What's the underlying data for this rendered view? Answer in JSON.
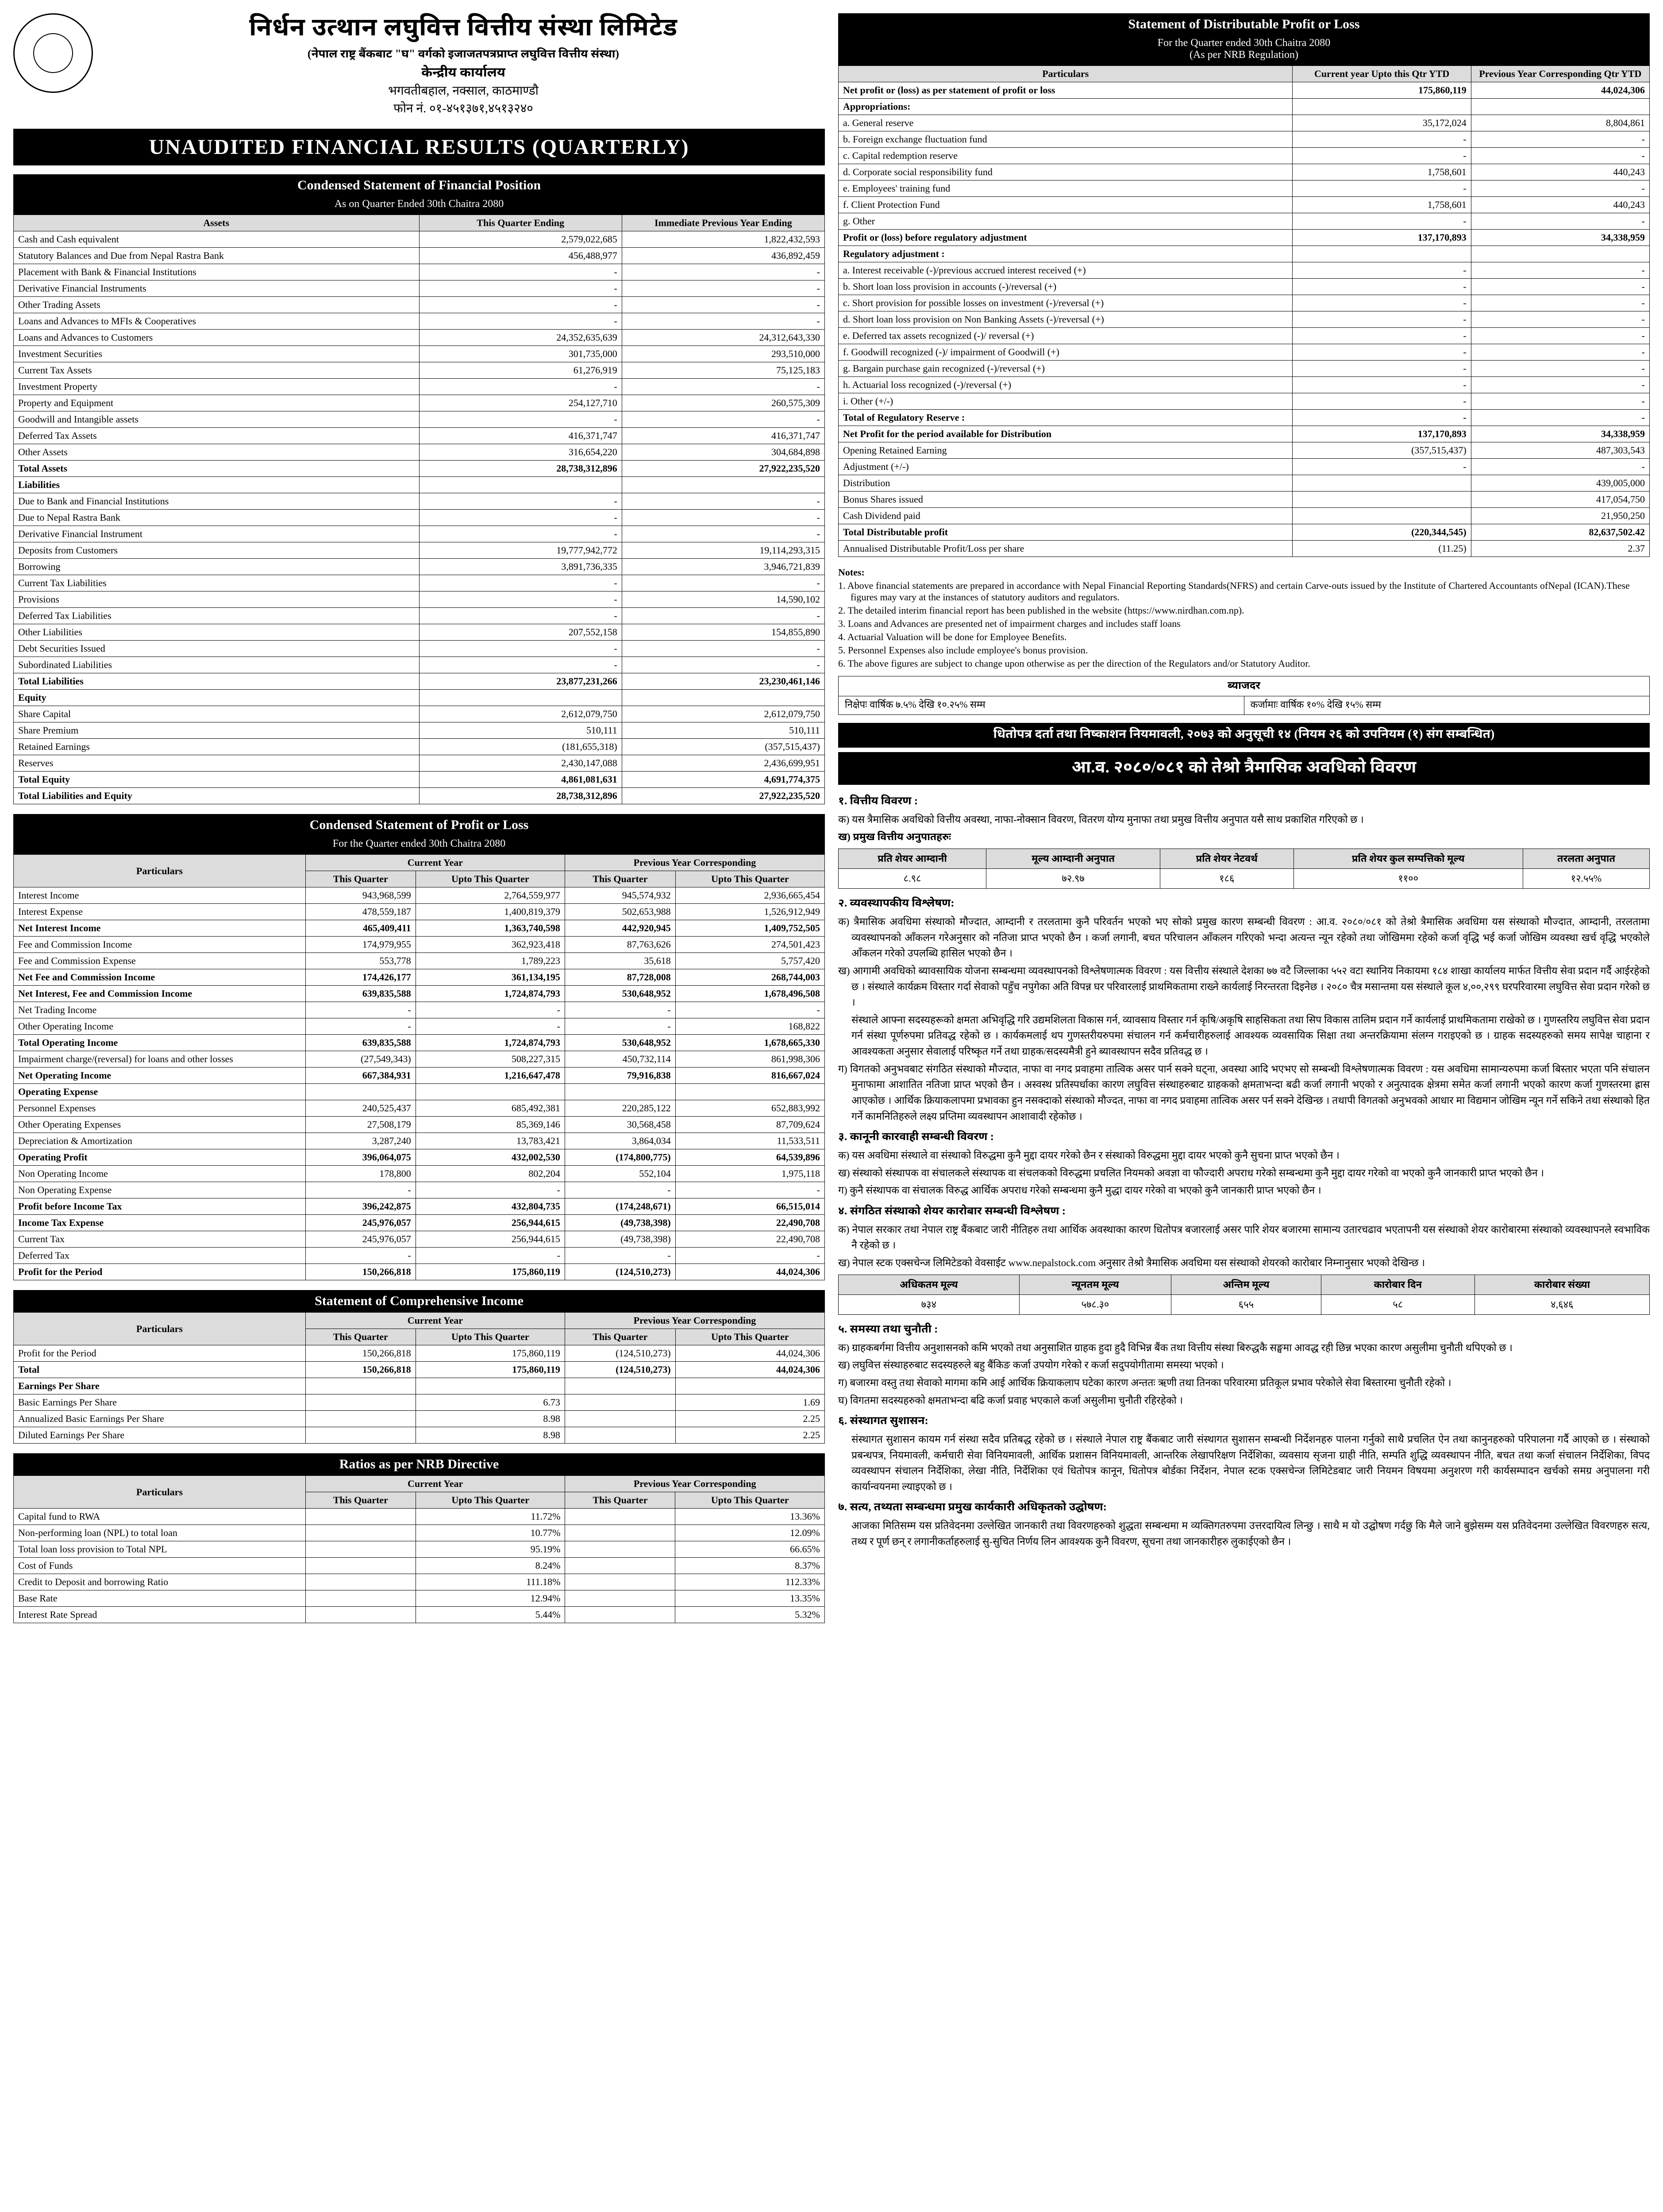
{
  "header": {
    "bank_name": "निर्धन उत्थान लघुवित्त वित्तीय संस्था लिमिटेड",
    "bank_sub": "(नेपाल राष्ट्र बैंकबाट \"घ\" वर्गको इजाजतपत्रप्राप्त लघुवित्त वित्तीय संस्था)",
    "office": "केन्द्रीय कार्यालय",
    "address": "भगवतीबहाल, नक्साल, काठमाण्डौ",
    "phone": "फोन नं. ०१-४५१३७१,४५१३२४०"
  },
  "main_title": "UNAUDITED FINANCIAL RESULTS (QUARTERLY)",
  "sofp": {
    "title": "Condensed Statement of Financial Position",
    "subtitle": "As on Quarter Ended 30th Chaitra 2080",
    "headers": [
      "Assets",
      "This Quarter Ending",
      "Immediate Previous Year Ending"
    ],
    "rows": [
      [
        "Cash and Cash equivalent",
        "2,579,022,685",
        "1,822,432,593"
      ],
      [
        "Statutory Balances and Due from Nepal Rastra Bank",
        "456,488,977",
        "436,892,459"
      ],
      [
        "Placement with Bank & Financial Institutions",
        "-",
        "-"
      ],
      [
        "Derivative Financial Instruments",
        "-",
        "-"
      ],
      [
        "Other Trading Assets",
        "-",
        "-"
      ],
      [
        "Loans and Advances to MFIs & Cooperatives",
        "-",
        "-"
      ],
      [
        "Loans and Advances to Customers",
        "24,352,635,639",
        "24,312,643,330"
      ],
      [
        "Investment Securities",
        "301,735,000",
        "293,510,000"
      ],
      [
        "Current Tax Assets",
        "61,276,919",
        "75,125,183"
      ],
      [
        "Investment Property",
        "-",
        "-"
      ],
      [
        "Property and Equipment",
        "254,127,710",
        "260,575,309"
      ],
      [
        "Goodwill and Intangible assets",
        "-",
        "-"
      ],
      [
        "Deferred Tax Assets",
        "416,371,747",
        "416,371,747"
      ],
      [
        "Other Assets",
        "316,654,220",
        "304,684,898"
      ]
    ],
    "total_assets": [
      "Total Assets",
      "28,738,312,896",
      "27,922,235,520"
    ],
    "liab_header": "Liabilities",
    "liab_rows": [
      [
        "Due to Bank and Financial Institutions",
        "-",
        "-"
      ],
      [
        "Due to Nepal Rastra Bank",
        "-",
        "-"
      ],
      [
        "Derivative Financial Instrument",
        "-",
        "-"
      ],
      [
        "Deposits from Customers",
        "19,777,942,772",
        "19,114,293,315"
      ],
      [
        "Borrowing",
        "3,891,736,335",
        "3,946,721,839"
      ],
      [
        "Current Tax Liabilities",
        "-",
        "-"
      ],
      [
        "Provisions",
        "-",
        "14,590,102"
      ],
      [
        "Deferred Tax Liabilities",
        "-",
        "-"
      ],
      [
        "Other Liabilities",
        "207,552,158",
        "154,855,890"
      ],
      [
        "Debt Securities Issued",
        "-",
        "-"
      ],
      [
        "Subordinated Liabilities",
        "-",
        "-"
      ]
    ],
    "total_liab": [
      "Total Liabilities",
      "23,877,231,266",
      "23,230,461,146"
    ],
    "equity_header": "Equity",
    "equity_rows": [
      [
        "Share Capital",
        "2,612,079,750",
        "2,612,079,750"
      ],
      [
        "Share Premium",
        "510,111",
        "510,111"
      ],
      [
        "Retained Earnings",
        "(181,655,318)",
        "(357,515,437)"
      ],
      [
        "Reserves",
        "2,430,147,088",
        "2,436,699,951"
      ]
    ],
    "total_equity": [
      "Total Equity",
      "4,861,081,631",
      "4,691,774,375"
    ],
    "total_le": [
      "Total Liabilities and Equity",
      "28,738,312,896",
      "27,922,235,520"
    ]
  },
  "pl": {
    "title": "Condensed Statement of Profit or Loss",
    "subtitle": "For the Quarter ended 30th Chaitra 2080",
    "h_part": "Particulars",
    "h_cy": "Current Year",
    "h_py": "Previous Year Corresponding",
    "h_tq": "This Quarter",
    "h_utq": "Upto This Quarter",
    "rows": [
      [
        "Interest Income",
        "943,968,599",
        "2,764,559,977",
        "945,574,932",
        "2,936,665,454"
      ],
      [
        "Interest Expense",
        "478,559,187",
        "1,400,819,379",
        "502,653,988",
        "1,526,912,949"
      ]
    ],
    "nii": [
      "Net Interest Income",
      "465,409,411",
      "1,363,740,598",
      "442,920,945",
      "1,409,752,505"
    ],
    "fee_rows": [
      [
        "Fee and Commission Income",
        "174,979,955",
        "362,923,418",
        "87,763,626",
        "274,501,423"
      ],
      [
        "Fee and Commission Expense",
        "553,778",
        "1,789,223",
        "35,618",
        "5,757,420"
      ]
    ],
    "nfci": [
      "Net Fee and Commission Income",
      "174,426,177",
      "361,134,195",
      "87,728,008",
      "268,744,003"
    ],
    "nifci": [
      "Net Interest, Fee and Commission Income",
      "639,835,588",
      "1,724,874,793",
      "530,648,952",
      "1,678,496,508"
    ],
    "mid_rows": [
      [
        "Net Trading Income",
        "-",
        "-",
        "-",
        "-"
      ],
      [
        "Other Operating Income",
        "-",
        "-",
        "-",
        "168,822"
      ]
    ],
    "toi": [
      "Total Operating Income",
      "639,835,588",
      "1,724,874,793",
      "530,648,952",
      "1,678,665,330"
    ],
    "impair": [
      "Impairment charge/(reversal) for loans and other losses",
      "(27,549,343)",
      "508,227,315",
      "450,732,114",
      "861,998,306"
    ],
    "noi": [
      "Net Operating Income",
      "667,384,931",
      "1,216,647,478",
      "79,916,838",
      "816,667,024"
    ],
    "opex_header": "Operating Expense",
    "opex_rows": [
      [
        "Personnel Expenses",
        "240,525,437",
        "685,492,381",
        "220,285,122",
        "652,883,992"
      ],
      [
        "Other Operating Expenses",
        "27,508,179",
        "85,369,146",
        "30,568,458",
        "87,709,624"
      ],
      [
        "Depreciation & Amortization",
        "3,287,240",
        "13,783,421",
        "3,864,034",
        "11,533,511"
      ]
    ],
    "op": [
      "Operating Profit",
      "396,064,075",
      "432,002,530",
      "(174,800,775)",
      "64,539,896"
    ],
    "nonop": [
      [
        "Non Operating Income",
        "178,800",
        "802,204",
        "552,104",
        "1,975,118"
      ],
      [
        "Non Operating Expense",
        "-",
        "-",
        "-",
        "-"
      ]
    ],
    "pbit": [
      "Profit before Income Tax",
      "396,242,875",
      "432,804,735",
      "(174,248,671)",
      "66,515,014"
    ],
    "tax_rows": [
      [
        "Income Tax Expense",
        "245,976,057",
        "256,944,615",
        "(49,738,398)",
        "22,490,708"
      ],
      [
        "Current Tax",
        "245,976,057",
        "256,944,615",
        "(49,738,398)",
        "22,490,708"
      ],
      [
        "Deferred Tax",
        "-",
        "-",
        "-",
        "-"
      ]
    ],
    "profit": [
      "Profit for the Period",
      "150,266,818",
      "175,860,119",
      "(124,510,273)",
      "44,024,306"
    ]
  },
  "comp": {
    "title": "Statement of Comprehensive Income",
    "rows": [
      [
        "Profit for the Period",
        "150,266,818",
        "175,860,119",
        "(124,510,273)",
        "44,024,306"
      ]
    ],
    "total": [
      "Total",
      "150,266,818",
      "175,860,119",
      "(124,510,273)",
      "44,024,306"
    ],
    "eps_header": "Earnings Per Share",
    "eps_rows": [
      [
        "Basic Earnings Per Share",
        "",
        "6.73",
        "",
        "1.69"
      ],
      [
        "Annualized Basic Earnings Per Share",
        "",
        "8.98",
        "",
        "2.25"
      ],
      [
        "Diluted Earnings Per Share",
        "",
        "8.98",
        "",
        "2.25"
      ]
    ]
  },
  "ratios": {
    "title": "Ratios as per NRB Directive",
    "rows": [
      [
        "Capital fund to RWA",
        "",
        "11.72%",
        "",
        "13.36%"
      ],
      [
        "Non-performing loan (NPL) to total loan",
        "",
        "10.77%",
        "",
        "12.09%"
      ],
      [
        "Total loan loss provision to Total NPL",
        "",
        "95.19%",
        "",
        "66.65%"
      ],
      [
        "Cost of Funds",
        "",
        "8.24%",
        "",
        "8.37%"
      ],
      [
        "Credit to Deposit and borrowing Ratio",
        "",
        "111.18%",
        "",
        "112.33%"
      ],
      [
        "Base Rate",
        "",
        "12.94%",
        "",
        "13.35%"
      ],
      [
        "Interest Rate Spread",
        "",
        "5.44%",
        "",
        "5.32%"
      ]
    ]
  },
  "dist": {
    "title": "Statement of Distributable Profit or Loss",
    "sub1": "For the Quarter ended 30th Chaitra 2080",
    "sub2": "(As per NRB Regulation)",
    "h": [
      "Particulars",
      "Current year Upto this Qtr YTD",
      "Previous Year Corresponding Qtr YTD"
    ],
    "netprofit": [
      "Net profit or (loss) as per statement of profit or loss",
      "175,860,119",
      "44,024,306"
    ],
    "appr_header": "Appropriations:",
    "appr": [
      [
        "a. General reserve",
        "35,172,024",
        "8,804,861"
      ],
      [
        "b. Foreign exchange fluctuation fund",
        "-",
        "-"
      ],
      [
        "c. Capital redemption reserve",
        "-",
        "-"
      ],
      [
        "d. Corporate social responsibility fund",
        "1,758,601",
        "440,243"
      ],
      [
        "e. Employees' training fund",
        "-",
        "-"
      ],
      [
        "f. Client Protection Fund",
        "1,758,601",
        "440,243"
      ],
      [
        "g. Other",
        "-",
        "-"
      ]
    ],
    "pbra": [
      "Profit or (loss) before regulatory adjustment",
      "137,170,893",
      "34,338,959"
    ],
    "reg_header": "Regulatory adjustment :",
    "reg": [
      [
        "a. Interest receivable (-)/previous accrued interest received (+)",
        "-",
        "-"
      ],
      [
        "b. Short loan loss provision in accounts (-)/reversal (+)",
        "-",
        "-"
      ],
      [
        "c. Short provision for possible losses on investment (-)/reversal (+)",
        "-",
        "-"
      ],
      [
        "d. Short loan loss provision on Non Banking Assets (-)/reversal (+)",
        "-",
        "-"
      ],
      [
        "e. Deferred tax assets recognized (-)/ reversal (+)",
        "-",
        "-"
      ],
      [
        "f. Goodwill recognized (-)/ impairment of Goodwill (+)",
        "-",
        "-"
      ],
      [
        "g. Bargain purchase gain recognized (-)/reversal (+)",
        "-",
        "-"
      ],
      [
        "h. Actuarial loss recognized (-)/reversal (+)",
        "-",
        "-"
      ],
      [
        "i. Other (+/-)",
        "-",
        "-"
      ]
    ],
    "totreg": [
      "Total of Regulatory Reserve :",
      "-",
      "-"
    ],
    "netavail": [
      "Net Profit for the period available for Distribution",
      "137,170,893",
      "34,338,959"
    ],
    "tail": [
      [
        "Opening Retained Earning",
        "(357,515,437)",
        "487,303,543"
      ],
      [
        "Adjustment (+/-)",
        "-",
        "-"
      ],
      [
        "Distribution",
        "",
        "439,005,000"
      ],
      [
        "Bonus Shares issued",
        "",
        "417,054,750"
      ],
      [
        "Cash Dividend paid",
        "",
        "21,950,250"
      ]
    ],
    "totdist": [
      "Total Distributable profit",
      "(220,344,545)",
      "82,637,502.42"
    ],
    "ann": [
      "Annualised Distributable Profit/Loss per share",
      "(11.25)",
      "2.37"
    ]
  },
  "notes_title": "Notes:",
  "notes": [
    "1.  Above financial statements are prepared in accordance with Nepal Financial Reporting Standards(NFRS) and certain Carve-outs issued by  the Institute of Chartered Accountants ofNepal (ICAN).These figures may vary at the instances of statutory auditors and regulators.",
    "2.  The detailed interim financial report has been published in the website (https://www.nirdhan.com.np).",
    "3.  Loans and Advances are presented net of impairment charges and includes staff loans",
    "4.  Actuarial Valuation will be done for Employee Benefits.",
    "5.  Personnel Expenses also include employee's bonus provision.",
    "6.  The above figures are subject to change upon otherwise as per the direction of the Regulators and/or Statutory Auditor."
  ],
  "rate": {
    "header": "ब्याजदर",
    "deposit": "निक्षेपः वार्षिक ७.५% देखि १०.२५% सम्म",
    "loan": "कर्जामाः वार्षिक १०% देखि १५% सम्म"
  },
  "dhito": "धितोपत्र दर्ता तथा निष्काशन नियमावली, २०७३ को अनुसूची १४ (नियम २६ को उपनियम (१) संग सम्बन्धित)",
  "nep_title": "आ.व. २०८०/०८१ को तेश्रो त्रैमासिक अवधिको विवरण",
  "nep": {
    "s1h": "१. वित्तीय विवरण :",
    "s1a": "क) यस त्रैमासिक अवधिको वित्तीय अवस्था, नाफा-नोक्सान विवरण, वितरण योग्य मुनाफा तथा प्रमुख वित्तीय अनुपात यसै साथ प्रकाशित गरिएको छ ।",
    "s1b": "ख) प्रमुख वित्तीय अनुपातहरुः",
    "ratio_headers": [
      "प्रति शेयर आम्दानी",
      "मूल्य आम्दानी अनुपात",
      "प्रति शेयर नेटवर्थ",
      "प्रति शेयर कुल सम्पत्तिको मूल्य",
      "तरलता अनुपात"
    ],
    "ratio_values": [
      "८.९८",
      "७२.९७",
      "१८६",
      "११००",
      "१२.५५%"
    ],
    "s2h": "२. व्यवस्थापकीय विश्लेषण:",
    "s2a": "क) त्रैमासिक अवधिमा संस्थाको मौज्दात, आम्दानी र तरलतामा कुनै परिवर्तन भएको भए सोको प्रमुख कारण सम्बन्धी विवरण : आ.व. २०८०/०८१ को तेश्रो त्रैमासिक अवधिमा यस संस्थाको मौज्दात, आम्दानी, तरलतामा व्यवस्थापनको आँकलन गरेअनुसार को नतिजा प्राप्त भएको छैन । कर्जा लगानी, बचत परिचालन आँकलन गरिएको भन्दा अत्यन्त न्यून रहेको तथा जोखिममा रहेको कर्जा वृद्धि भई कर्जा जोखिम व्यवस्था खर्च वृद्धि भएकोले आँकलन गरेको उपलब्धि हासिल भएको छैन ।",
    "s2b": "ख) आगामी अवधिको ब्यावसायिक योजना सम्बन्धमा व्यवस्थापनको विश्लेषणात्मक विवरण : यस वित्तीय संस्थाले देशका ७७ वटै जिल्लाका ५५२ वटा स्थानिय निकायमा १८४ शाखा कार्यालय मार्फत वित्तीय सेवा प्रदान गर्दै आईरहेको छ । संस्थाले कार्यक्रम विस्तार गर्दा सेवाको पहुँच नपुगेका अति विपन्न घर परिवारलाई प्राथमिकतामा राख्ने कार्यलाई निरन्तरता दिइनेछ । २०८० चैत्र मसान्तमा यस संस्थाले कूल ४,००,२९९ घरपरिवारमा लघुवित्त सेवा प्रदान गरेको छ ।",
    "s2c": "संस्थाले आफ्ना सदस्यहरूको क्षमता अभिवृद्धि गरि उद्यमशिलता विकास गर्न, व्यावसाय विस्तार गर्न कृषि/अकृषि साहसिकता तथा सिप विकास तालिम प्रदान गर्ने कार्यलाई प्राथमिकतामा राखेको छ । गुणस्तरिय लघुवित्त सेवा प्रदान गर्न संस्था पूर्णरुपमा प्रतिवद्ध रहेको छ । कार्यकमलाई थप गुणस्तरीयरुपमा संचालन गर्न कर्मचारीहरुलाई आवश्यक व्यवसायिक सिक्षा तथा अन्तरक्रियामा संलग्न गराइएको छ । ग्राहक सदस्यहरुको समय सापेक्ष चाहाना र आवश्यकता अनुसार सेवालाई परिष्कृत गर्ने तथा ग्राहक/सदस्यमैत्री हुने ब्यावस्थापन सदैव प्रतिवद्ध छ ।",
    "s2d": "ग) विगतको अनुभवबाट संगठित संस्थाको मौज्दात, नाफा वा नगद प्रवाहमा तात्विक असर पार्न सक्ने घट्ना, अवस्था आदि भएभए सो सम्बन्धी विश्लेषणात्मक विवरण : यस अवधिमा सामान्यरुपमा कर्जा बिस्तार भएता पनि संचालन मुनाफामा आशातित नतिजा प्राप्त भएको छैन । अस्वस्थ प्रतिस्पर्धाका कारण लघुवित्त संस्थाहरुबाट ग्राहकको क्षमताभन्दा बढी कर्जा लगानी भएको र अनुत्पादक क्षेत्रमा समेत कर्जा लगानी भएको कारण कर्जा गुणस्तरमा ह्रास आएकोछ । आर्थिक क्रियाकलापमा प्रभावका हुन नसक्दाको संस्थाको मौज्दत, नाफा वा नगद प्रवाहमा तात्विक असर पर्न सक्ने देखिन्छ । तथापी विगतको अनुभवको आधार मा विद्यमान जोखिम न्यून गर्ने सकिने तथा संस्थाको हित गर्ने कामनितिहरुले लक्ष्य प्रप्तिमा व्यवस्थापन आशावादी रहेकोछ ।",
    "s3h": "३. कानूनी कारवाही सम्बन्धी विवरण :",
    "s3a": "क) यस अवधिमा संस्थाले वा संस्थाको विरुद्धमा कुनै मुद्दा दायर गरेको छैन र संस्थाको विरुद्धमा मुद्दा दायर भएको कुनै सुचना प्राप्त भएको छैन ।",
    "s3b": "ख) संस्थाको संस्थापक वा संचालकले संस्थापक वा संचलकको विरुद्धमा प्रचलित नियमको अवज्ञा वा फौज्दारी अपराध गरेको सम्बन्धमा कुनै मुद्दा दायर गरेको वा भएको कुनै जानकारी प्राप्त भएको छैन ।",
    "s3c": "ग) कुनै संस्थापक वा संचालक विरुद्ध आर्थिक अपराध गरेको सम्बन्धमा कुनै मुद्धा दायर गरेको वा भएको कुनै जानकारी प्राप्त भएको छैन ।",
    "s4h": "४. संगठित संस्थाको शेयर कारोबार सम्बन्धी विश्लेषण :",
    "s4a": "क) नेपाल सरकार तथा नेपाल राष्ट्र बैंकबाट जारी नीतिहरु तथा आर्थिक अवस्थाका कारण धितोपत्र बजारलाई असर पारि शेयर बजारमा सामान्य उतारचढाव भएतापनी यस संस्थाको शेयर कारोबारमा संस्थाको व्यवस्थापनले स्वभाविक नै रहेको छ ।",
    "s4b": "ख) नेपाल स्टक एक्सचेन्ज लिमिटेडको वेवसाईट www.nepalstock.com अनुसार तेश्रो त्रैमासिक अवधिमा यस संस्थाको शेयरको कारोबार निम्नानुसार भएको देखिन्छ ।",
    "share_headers": [
      "अधिकतम मूल्य",
      "न्यूनतम मूल्य",
      "अन्तिम मूल्य",
      "कारोबार दिन",
      "कारोबार संख्या"
    ],
    "share_values": [
      "७३४",
      "५७८.३०",
      "६५५",
      "५८",
      "४,६४६"
    ],
    "s5h": "५. समस्या तथा चुनौती :",
    "s5a": "क) ग्राहकबर्गमा वित्तीय अनुशासनको कमि भएको तथा अनुसाशित ग्राहक हुदा हुदै विभिन्न बैंक तथा वित्तीय संस्था बिरुद्धकै सङ्घमा आवद्ध रही छिन्न भएका कारण असुलीमा चुनौती थपिएको छ ।",
    "s5b": "ख) लघुवित्त संस्थाहरुबाट सदस्यहरुले बहु बैंकिङ कर्जा उपयोग गरेको र कर्जा सदुपयोगीतामा समस्या भएको ।",
    "s5c": "ग) बजारमा वस्तु तथा सेवाको मागमा कमि आई आर्थिक क्रियाकलाप घटेका कारण अन्ततः ऋणी तथा तिनका परिवारमा प्रतिकूल प्रभाव परेकोले सेवा बिस्तारमा चुनौती रहेको ।",
    "s5d": "घ) विगतमा सदस्यहरुको क्षमताभन्दा बढि कर्जा प्रवाह भएकाले कर्जा असुलीमा चुनौती रहिरहेको ।",
    "s6h": "६. संस्थागत सुशासन:",
    "s6a": "संस्थागत सुशासन कायम गर्न संस्था सदैव प्रतिबद्ध रहेको छ । संस्थाले नेपाल राष्ट्र बैंकबाट जारी संस्थागत सुशासन सम्बन्धी निर्देशनहरु पालना गर्नुको साथै प्रचलित ऐन तथा कानुनहरुको परिपालना गर्दै आएको छ । संस्थाको प्रबन्धपत्र, नियमावली, कर्मचारी सेवा विनियमावली, आर्थिक प्रशासन विनियमावली, आन्तरिक लेखापरिक्षण निर्देशिका, व्यवसाय सृजना ग्राही नीति, सम्पति शुद्धि व्यवस्थापन नीति, बचत तथा कर्जा संचालन निर्देशिका, विपद व्यवस्थापन संचालन निर्देशिका, लेखा नीति, निर्देशिका एवं धितोपत्र कानून, धितोपत्र बोर्डका निर्देशन, नेपाल स्टक एक्सचेन्ज लिमिटेडबाट जारी नियमन विषयमा अनुशरण गरी कार्यसम्पादन खर्चको समग्र अनुपालना गरी कार्यान्वयनमा ल्याइएको छ ।",
    "s7h": "७. सत्य, तथ्यता सम्बन्धमा प्रमुख कार्यकारी अधिकृतको उद्घोषण:",
    "s7a": "आजका मितिसम्म यस प्रतिवेदनमा उल्लेखित जानकारी तथा विवरणहरुको शुद्धता सम्बन्धमा म व्यक्तिगतरुपमा उत्तरदायित्व लिन्छु । साथै म यो उद्घोषण गर्दछु कि मैले जाने बुझेसम्म यस प्रतिवेदनमा उल्लेखित विवरणहरु सत्य, तथ्य र पूर्ण छन् र लगानीकर्ताहरुलाई सु-सुचित निर्णय लिन आवश्यक कुनै विवरण, सूचना तथा जानकारीहरु लुकाईएको छैन ।"
  }
}
